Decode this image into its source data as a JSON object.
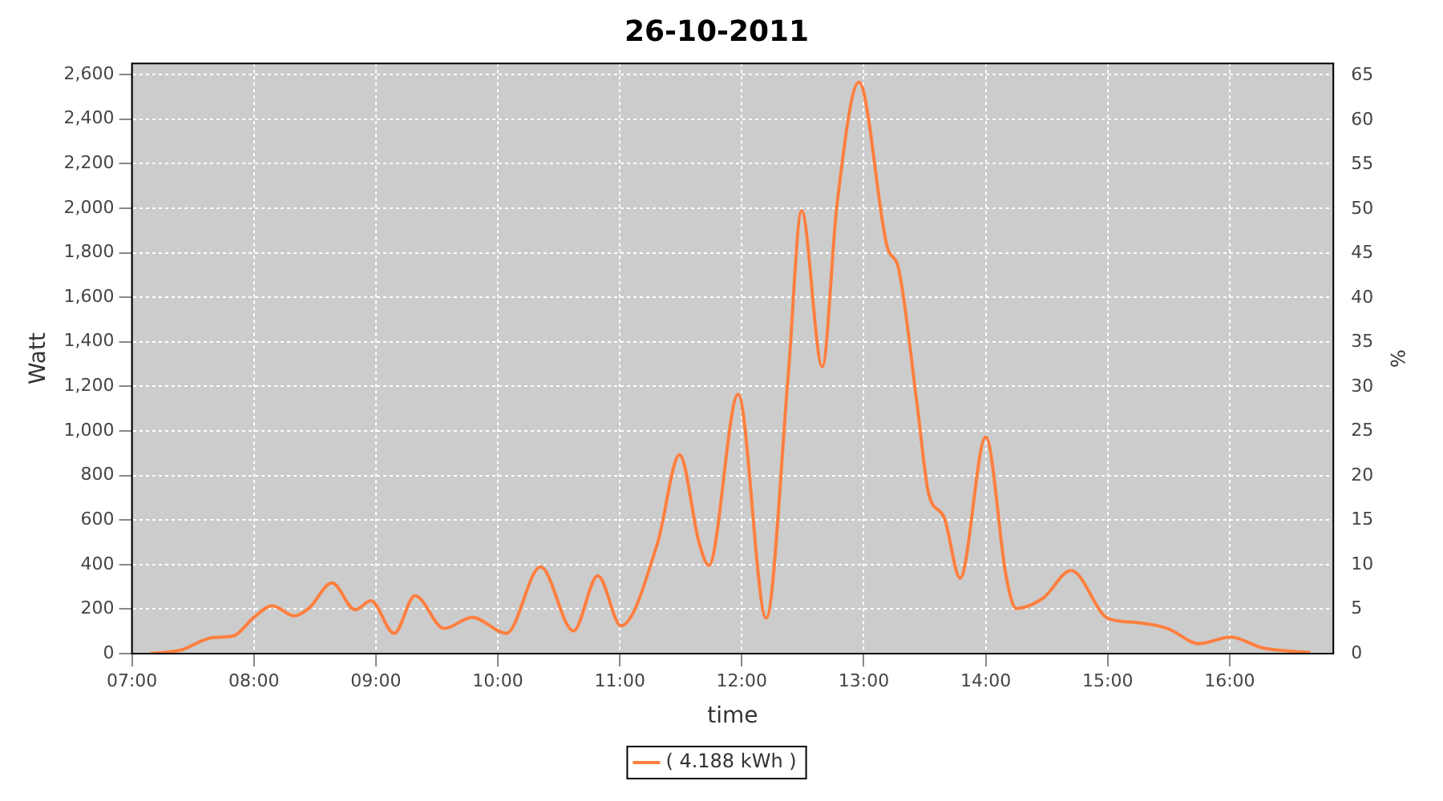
{
  "chart_data": {
    "type": "line",
    "title": "26-10-2011",
    "xlabel": "time",
    "ylabel": "Watt",
    "y2label": "%",
    "xlim": [
      7,
      16.85
    ],
    "xticks": [
      {
        "value": 7,
        "label": "07:00"
      },
      {
        "value": 8,
        "label": "08:00"
      },
      {
        "value": 9,
        "label": "09:00"
      },
      {
        "value": 10,
        "label": "10:00"
      },
      {
        "value": 11,
        "label": "11:00"
      },
      {
        "value": 12,
        "label": "12:00"
      },
      {
        "value": 13,
        "label": "13:00"
      },
      {
        "value": 14,
        "label": "14:00"
      },
      {
        "value": 15,
        "label": "15:00"
      },
      {
        "value": 16,
        "label": "16:00"
      }
    ],
    "ylim": [
      0,
      2650
    ],
    "yticks": [
      0,
      200,
      400,
      600,
      800,
      {
        "value": 1000,
        "label": "1,000"
      },
      {
        "value": 1200,
        "label": "1,200"
      },
      {
        "value": 1400,
        "label": "1,400"
      },
      {
        "value": 1600,
        "label": "1,600"
      },
      {
        "value": 1800,
        "label": "1,800"
      },
      {
        "value": 2000,
        "label": "2,000"
      },
      {
        "value": 2200,
        "label": "2,200"
      },
      {
        "value": 2400,
        "label": "2,400"
      },
      {
        "value": 2600,
        "label": "2,600"
      }
    ],
    "y2lim": [
      0,
      66.4
    ],
    "y2ticks": [
      0,
      5,
      10,
      15,
      20,
      25,
      30,
      35,
      40,
      45,
      50,
      55,
      60,
      65
    ],
    "grid": true,
    "legend": "bottom",
    "marker": "none",
    "line_style": "solid",
    "series": [
      {
        "name": "( 4.188 kWh )",
        "color": "#ff7f3f",
        "x": [
          7.15,
          7.4,
          7.66,
          7.83,
          8.0,
          8.15,
          8.33,
          8.45,
          8.64,
          8.83,
          8.96,
          9.15,
          9.32,
          9.56,
          9.79,
          10.07,
          10.35,
          10.62,
          10.82,
          11.01,
          11.31,
          11.49,
          11.65,
          11.73,
          11.97,
          12.2,
          12.38,
          12.49,
          12.66,
          12.78,
          12.96,
          13.19,
          13.29,
          13.44,
          13.53,
          13.66,
          13.79,
          14.0,
          14.17,
          14.25,
          14.47,
          14.7,
          15.0,
          15.23,
          15.49,
          15.75,
          16.01,
          16.26,
          16.66
        ],
        "values": [
          0,
          16,
          72,
          79,
          163,
          215,
          170,
          203,
          317,
          197,
          237,
          91,
          260,
          113,
          163,
          91,
          389,
          102,
          350,
          125,
          498,
          893,
          498,
          396,
          1164,
          159,
          1243,
          1989,
          1288,
          2012,
          2566,
          1831,
          1718,
          1108,
          723,
          610,
          339,
          972,
          339,
          203,
          249,
          373,
          159,
          140,
          113,
          45,
          75,
          27,
          5
        ]
      }
    ]
  }
}
